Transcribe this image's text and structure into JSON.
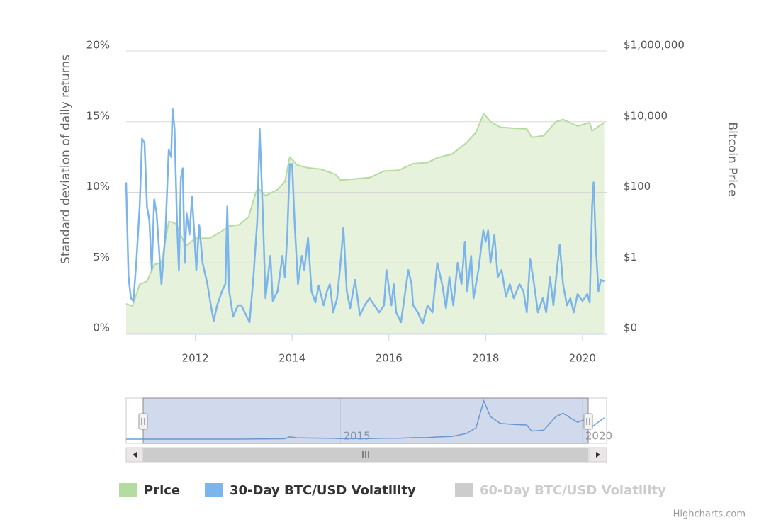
{
  "chart_data": {
    "type": "line",
    "y_title": "Standard deviation of daily returns",
    "y2_title": "Bitcoin Price",
    "xlim": [
      2010.57,
      2020.5
    ],
    "xticks": [
      2012,
      2014,
      2016,
      2018,
      2020
    ],
    "ylim": [
      0,
      20
    ],
    "yticks": [
      {
        "value": 0,
        "label": "0%"
      },
      {
        "value": 5,
        "label": "5%"
      },
      {
        "value": 10,
        "label": "10%"
      },
      {
        "value": 15,
        "label": "15%"
      },
      {
        "value": 20,
        "label": "20%"
      }
    ],
    "y2lim": [
      0.01,
      1000000
    ],
    "y2_log": true,
    "y2ticks": [
      {
        "value": 0.01,
        "label": "$0"
      },
      {
        "value": 1,
        "label": "$1"
      },
      {
        "value": 100,
        "label": "$100"
      },
      {
        "value": 10000,
        "label": "$10,000"
      },
      {
        "value": 1000000,
        "label": "$1,000,000"
      }
    ],
    "grid": true,
    "series": [
      {
        "name": "Price",
        "color": "#b5dca0",
        "fill": "#e6f2dc",
        "axis": "y2",
        "kind": "area",
        "x": [
          2010.57,
          2010.7,
          2010.85,
          2011.0,
          2011.15,
          2011.3,
          2011.45,
          2011.6,
          2011.8,
          2012.0,
          2012.3,
          2012.55,
          2012.7,
          2012.9,
          2013.1,
          2013.25,
          2013.3,
          2013.45,
          2013.7,
          2013.85,
          2013.95,
          2014.1,
          2014.3,
          2014.6,
          2014.9,
          2015.0,
          2015.3,
          2015.6,
          2015.9,
          2016.2,
          2016.5,
          2016.8,
          2017.0,
          2017.3,
          2017.6,
          2017.8,
          2017.96,
          2018.1,
          2018.3,
          2018.6,
          2018.85,
          2018.95,
          2019.2,
          2019.45,
          2019.6,
          2019.9,
          2020.15,
          2020.2,
          2020.45
        ],
        "values": [
          0.07,
          0.06,
          0.25,
          0.3,
          0.9,
          1,
          15,
          13,
          3,
          5,
          5,
          8,
          11,
          12,
          20,
          100,
          130,
          80,
          120,
          200,
          1000,
          600,
          500,
          450,
          320,
          220,
          240,
          260,
          400,
          420,
          650,
          700,
          950,
          1200,
          2500,
          5000,
          17000,
          10000,
          7000,
          6500,
          6300,
          3600,
          4000,
          10000,
          11500,
          7500,
          9500,
          5500,
          9500
        ]
      },
      {
        "name": "30-Day BTC/USD Volatility",
        "color": "#7cb5ec",
        "axis": "y",
        "x": [
          2010.57,
          2010.62,
          2010.67,
          2010.72,
          2010.78,
          2010.85,
          2010.9,
          2010.95,
          2011.0,
          2011.05,
          2011.1,
          2011.15,
          2011.2,
          2011.3,
          2011.38,
          2011.45,
          2011.5,
          2011.53,
          2011.57,
          2011.62,
          2011.66,
          2011.7,
          2011.74,
          2011.78,
          2011.82,
          2011.88,
          2011.93,
          2011.98,
          2012.02,
          2012.08,
          2012.15,
          2012.25,
          2012.32,
          2012.38,
          2012.45,
          2012.55,
          2012.62,
          2012.66,
          2012.7,
          2012.78,
          2012.88,
          2012.95,
          2013.05,
          2013.12,
          2013.2,
          2013.28,
          2013.33,
          2013.4,
          2013.45,
          2013.55,
          2013.6,
          2013.7,
          2013.8,
          2013.85,
          2013.9,
          2013.95,
          2014.0,
          2014.05,
          2014.12,
          2014.2,
          2014.25,
          2014.33,
          2014.4,
          2014.48,
          2014.55,
          2014.65,
          2014.72,
          2014.78,
          2014.85,
          2014.93,
          2015.0,
          2015.06,
          2015.13,
          2015.2,
          2015.3,
          2015.4,
          2015.5,
          2015.6,
          2015.7,
          2015.8,
          2015.9,
          2015.95,
          2016.05,
          2016.1,
          2016.15,
          2016.25,
          2016.3,
          2016.4,
          2016.47,
          2016.5,
          2016.6,
          2016.7,
          2016.8,
          2016.9,
          2017.0,
          2017.1,
          2017.18,
          2017.25,
          2017.33,
          2017.42,
          2017.5,
          2017.57,
          2017.62,
          2017.7,
          2017.75,
          2017.85,
          2017.95,
          2018.0,
          2018.05,
          2018.1,
          2018.18,
          2018.25,
          2018.33,
          2018.42,
          2018.5,
          2018.58,
          2018.7,
          2018.78,
          2018.85,
          2018.92,
          2019.0,
          2019.08,
          2019.18,
          2019.25,
          2019.33,
          2019.4,
          2019.48,
          2019.53,
          2019.6,
          2019.68,
          2019.75,
          2019.82,
          2019.9,
          2020.0,
          2020.1,
          2020.15,
          2020.2,
          2020.23,
          2020.28,
          2020.33,
          2020.38,
          2020.45
        ],
        "values": [
          10.7,
          4,
          2.5,
          2.3,
          5,
          9,
          13.8,
          13.5,
          9,
          8,
          4.5,
          9.5,
          8.5,
          3.5,
          7,
          13,
          12.5,
          15.9,
          14.5,
          8,
          4.5,
          11,
          11.7,
          5,
          8.5,
          7,
          9.7,
          7,
          4.5,
          7.7,
          5,
          3.5,
          2,
          0.9,
          2,
          3,
          3.5,
          9,
          3,
          1.2,
          2,
          2,
          1.3,
          0.8,
          4,
          8,
          14.5,
          8,
          2.5,
          5.5,
          2.3,
          3,
          5.5,
          4,
          7,
          12,
          12,
          8,
          3.5,
          5.5,
          4.5,
          6.8,
          3,
          2.2,
          3.4,
          2,
          3,
          3.5,
          1.5,
          2.5,
          5,
          7.5,
          3,
          1.8,
          3.8,
          1.3,
          2,
          2.5,
          2,
          1.5,
          2,
          4.5,
          2,
          3.5,
          1.5,
          0.8,
          2,
          4.5,
          3.5,
          2,
          1.5,
          0.7,
          2,
          1.5,
          5,
          3.5,
          1.8,
          4,
          2,
          5,
          3.5,
          6.5,
          3,
          5.5,
          2.5,
          4.5,
          7.3,
          6.5,
          7.3,
          5,
          7,
          4,
          4.5,
          2.6,
          3.5,
          2.5,
          3.5,
          3,
          1.5,
          5.3,
          3.5,
          1.5,
          2.5,
          1.5,
          4,
          2,
          4.8,
          6.3,
          3.5,
          2,
          2.5,
          1.5,
          2.8,
          2.3,
          2.8,
          2.2,
          9,
          10.7,
          6,
          3,
          3.8,
          3.7
        ]
      },
      {
        "name": "60-Day BTC/USD Volatility",
        "color": "#cccccc",
        "visible": false
      }
    ],
    "navigator": {
      "xticks": [
        2015,
        2020
      ]
    },
    "credits": "Highcharts.com"
  }
}
